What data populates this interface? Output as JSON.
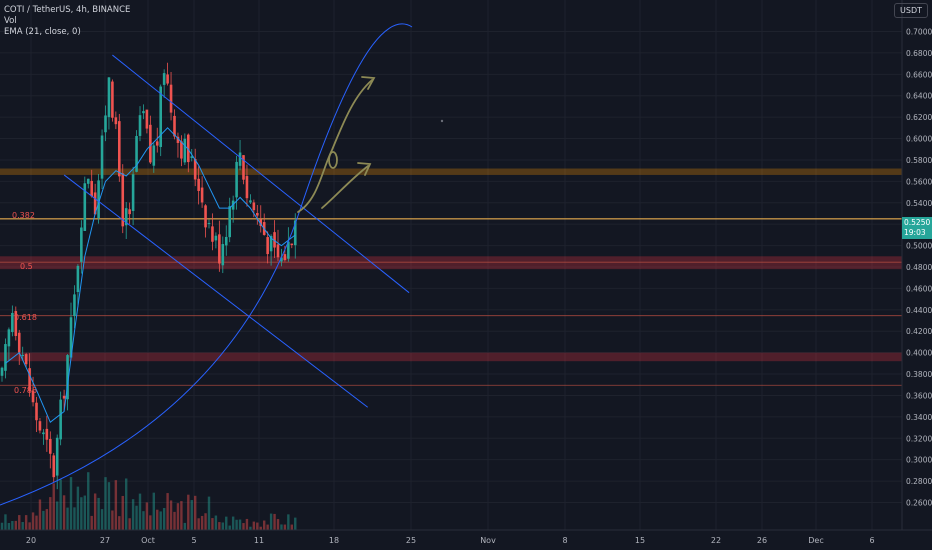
{
  "legend": {
    "symbol": "COTI / TetherUS, 4h, BINANCE",
    "volume": "Vol",
    "ema": "EMA (21, close, 0)"
  },
  "unit": "USDT",
  "last_price": {
    "value": "0.5250",
    "countdown": "19:03"
  },
  "fib_levels": [
    {
      "label": "0.382",
      "price": 0.525
    },
    {
      "label": "0.5",
      "price": 0.4845
    },
    {
      "label": "0.618",
      "price": 0.4345
    },
    {
      "label": "0.786",
      "price": 0.3695
    }
  ],
  "colors": {
    "background": "#131722",
    "up": "#26a69a",
    "down": "#ef5350",
    "trendline": "#2962ff",
    "ema": "#2196f3",
    "orange_zone": "#ff9800",
    "red_zone": "#f23645",
    "annotation": "#8d8a55"
  },
  "chart_data": {
    "type": "candlestick",
    "timeframe": "4h",
    "ylim": [
      0.25,
      0.72
    ],
    "y_ticks": [
      "0.7000",
      "0.6800",
      "0.6600",
      "0.6400",
      "0.6200",
      "0.6000",
      "0.5800",
      "0.5600",
      "0.5400",
      "0.5200",
      "0.5000",
      "0.4800",
      "0.4600",
      "0.4400",
      "0.4200",
      "0.4000",
      "0.3800",
      "0.3600",
      "0.3400",
      "0.3200",
      "0.3000",
      "0.2800",
      "0.2600"
    ],
    "x_ticks": [
      "20",
      "27",
      "Oct",
      "5",
      "11",
      "18",
      "25",
      "Nov",
      "8",
      "15",
      "22",
      "26",
      "Dec",
      "6"
    ],
    "close_path": [
      [
        0,
        0.375
      ],
      [
        3,
        0.44
      ],
      [
        6,
        0.4
      ],
      [
        9,
        0.35
      ],
      [
        12,
        0.32
      ],
      [
        15,
        0.29
      ],
      [
        18,
        0.37
      ],
      [
        21,
        0.45
      ],
      [
        23,
        0.53
      ],
      [
        25,
        0.57
      ],
      [
        27,
        0.54
      ],
      [
        29,
        0.59
      ],
      [
        31,
        0.665
      ],
      [
        33,
        0.6
      ],
      [
        35,
        0.53
      ],
      [
        37,
        0.52
      ],
      [
        39,
        0.6
      ],
      [
        41,
        0.62
      ],
      [
        43,
        0.58
      ],
      [
        45,
        0.6
      ],
      [
        47,
        0.67
      ],
      [
        49,
        0.63
      ],
      [
        51,
        0.6
      ],
      [
        53,
        0.59
      ],
      [
        55,
        0.575
      ],
      [
        57,
        0.56
      ],
      [
        59,
        0.53
      ],
      [
        61,
        0.51
      ],
      [
        63,
        0.495
      ],
      [
        65,
        0.52
      ],
      [
        67,
        0.555
      ],
      [
        69,
        0.59
      ],
      [
        71,
        0.55
      ],
      [
        73,
        0.535
      ],
      [
        75,
        0.52
      ],
      [
        77,
        0.505
      ],
      [
        79,
        0.49
      ],
      [
        81,
        0.487
      ],
      [
        83,
        0.5
      ],
      [
        85,
        0.525
      ]
    ],
    "ema21_path": [
      [
        1,
        0.39
      ],
      [
        5,
        0.4
      ],
      [
        10,
        0.365
      ],
      [
        14,
        0.335
      ],
      [
        18,
        0.345
      ],
      [
        21,
        0.42
      ],
      [
        24,
        0.49
      ],
      [
        27,
        0.53
      ],
      [
        30,
        0.56
      ],
      [
        33,
        0.57
      ],
      [
        36,
        0.565
      ],
      [
        39,
        0.575
      ],
      [
        42,
        0.59
      ],
      [
        45,
        0.6
      ],
      [
        48,
        0.61
      ],
      [
        51,
        0.6
      ],
      [
        54,
        0.59
      ],
      [
        57,
        0.575
      ],
      [
        60,
        0.555
      ],
      [
        63,
        0.535
      ],
      [
        66,
        0.535
      ],
      [
        69,
        0.545
      ],
      [
        72,
        0.535
      ],
      [
        75,
        0.52
      ],
      [
        78,
        0.507
      ],
      [
        81,
        0.5
      ],
      [
        85,
        0.51
      ]
    ],
    "zones": [
      {
        "name": "resistance",
        "low": 0.566,
        "high": 0.572,
        "color": "orange"
      },
      {
        "name": "support",
        "low": 0.478,
        "high": 0.49,
        "color": "red"
      },
      {
        "name": "support-lower",
        "low": 0.392,
        "high": 0.4,
        "color": "red"
      }
    ],
    "trendlines": [
      {
        "name": "upper-channel",
        "from": [
          32,
          0.678
        ],
        "to": [
          118,
          0.456
        ]
      },
      {
        "name": "lower-channel",
        "from": [
          18,
          0.566
        ],
        "to": [
          106,
          0.349
        ]
      }
    ]
  }
}
